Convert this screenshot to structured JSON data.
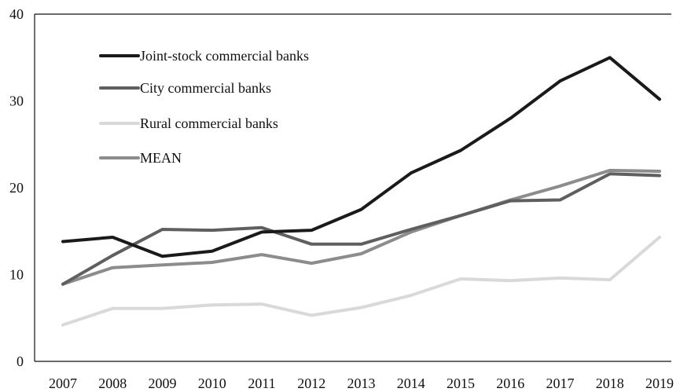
{
  "chart_data": {
    "type": "line",
    "title": "",
    "xlabel": "",
    "ylabel": "",
    "x": [
      "2007",
      "2008",
      "2009",
      "2010",
      "2011",
      "2012",
      "2013",
      "2014",
      "2015",
      "2016",
      "2017",
      "2018",
      "2019"
    ],
    "ylim": [
      0,
      40
    ],
    "yticks": [
      "0",
      "10",
      "20",
      "30",
      "40"
    ],
    "grid": false,
    "legend_position": "top-left",
    "series": [
      {
        "name": "Joint-stock commercial banks",
        "color": "#1a1a1a",
        "values": [
          13.8,
          14.3,
          12.1,
          12.7,
          14.9,
          15.1,
          17.5,
          21.7,
          24.3,
          28.0,
          32.3,
          35.0,
          30.2
        ]
      },
      {
        "name": "City commercial banks",
        "color": "#5f5f5f",
        "values": [
          8.9,
          12.2,
          15.2,
          15.1,
          15.4,
          13.5,
          13.5,
          15.2,
          16.8,
          18.5,
          18.6,
          21.6,
          21.4
        ]
      },
      {
        "name": "Rural commercial banks",
        "color": "#d9d9d9",
        "values": [
          4.2,
          6.1,
          6.1,
          6.5,
          6.6,
          5.3,
          6.2,
          7.6,
          9.5,
          9.3,
          9.6,
          9.4,
          14.3
        ]
      },
      {
        "name": "MEAN",
        "color": "#8c8c8c",
        "values": [
          8.9,
          10.8,
          11.1,
          11.4,
          12.3,
          11.3,
          12.4,
          14.9,
          16.8,
          18.6,
          20.2,
          22.0,
          21.9
        ]
      }
    ]
  }
}
